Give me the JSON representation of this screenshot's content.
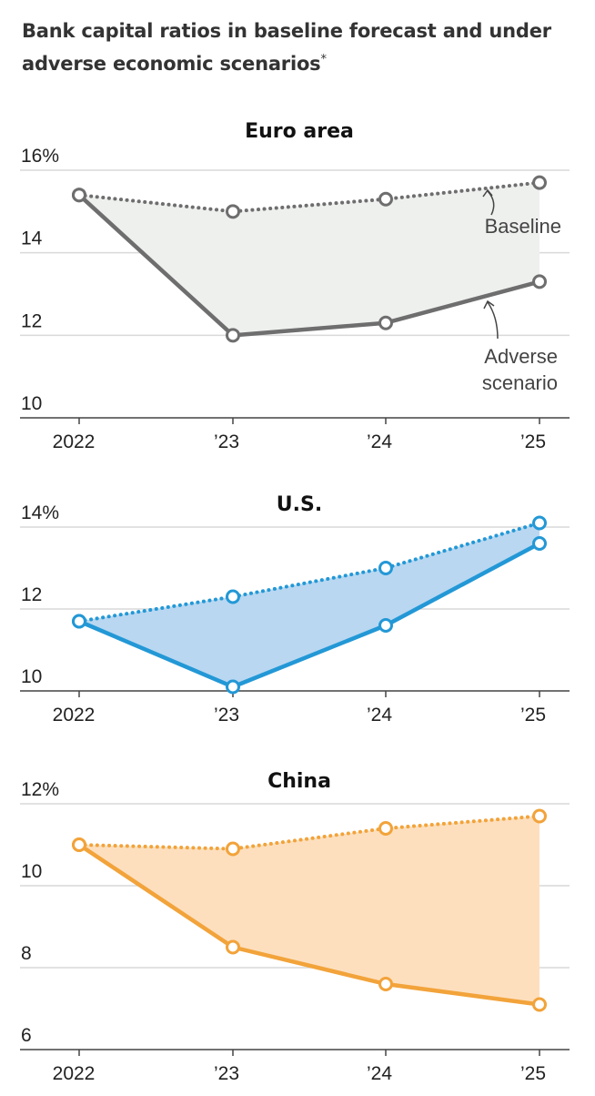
{
  "title": "Bank capital ratios in baseline forecast and under adverse economic scenarios",
  "title_note": "*",
  "chart_data": [
    {
      "type": "line",
      "title": "Euro area",
      "categories": [
        "2022",
        "’23",
        "’24",
        "’25"
      ],
      "yticks": [
        10,
        12,
        14,
        16
      ],
      "ytick_labels": [
        "10",
        "12",
        "14",
        "16%"
      ],
      "ylim": [
        10,
        16
      ],
      "series": [
        {
          "name": "Baseline",
          "style": "dotted",
          "values": [
            15.4,
            15.0,
            15.3,
            15.7
          ]
        },
        {
          "name": "Adverse scenario",
          "style": "solid",
          "values": [
            15.4,
            12.0,
            12.3,
            13.3
          ]
        }
      ],
      "annotations": {
        "baseline": [
          "Baseline"
        ],
        "adverse": [
          "Adverse",
          "scenario"
        ]
      },
      "colors": {
        "line": "#6e6e6e",
        "fill": "#eef0ee"
      }
    },
    {
      "type": "line",
      "title": "U.S.",
      "categories": [
        "2022",
        "’23",
        "’24",
        "’25"
      ],
      "yticks": [
        10,
        12,
        14
      ],
      "ytick_labels": [
        "10",
        "12",
        "14%"
      ],
      "ylim": [
        10,
        14
      ],
      "series": [
        {
          "style": "dotted",
          "values": [
            11.7,
            12.3,
            13.0,
            14.1
          ]
        },
        {
          "style": "solid",
          "values": [
            11.7,
            10.1,
            11.6,
            13.6
          ]
        }
      ],
      "colors": {
        "line": "#2398d6",
        "fill": "#b9d7f1"
      }
    },
    {
      "type": "line",
      "title": "China",
      "categories": [
        "2022",
        "’23",
        "’24",
        "’25"
      ],
      "yticks": [
        6,
        8,
        10,
        12
      ],
      "ytick_labels": [
        "6",
        "8",
        "10",
        "12%"
      ],
      "ylim": [
        6,
        12
      ],
      "series": [
        {
          "style": "dotted",
          "values": [
            11.0,
            10.9,
            11.4,
            11.7
          ]
        },
        {
          "style": "solid",
          "values": [
            11.0,
            8.5,
            7.6,
            7.1
          ]
        }
      ],
      "colors": {
        "line": "#f2a33a",
        "fill": "#fddfbe"
      }
    }
  ]
}
